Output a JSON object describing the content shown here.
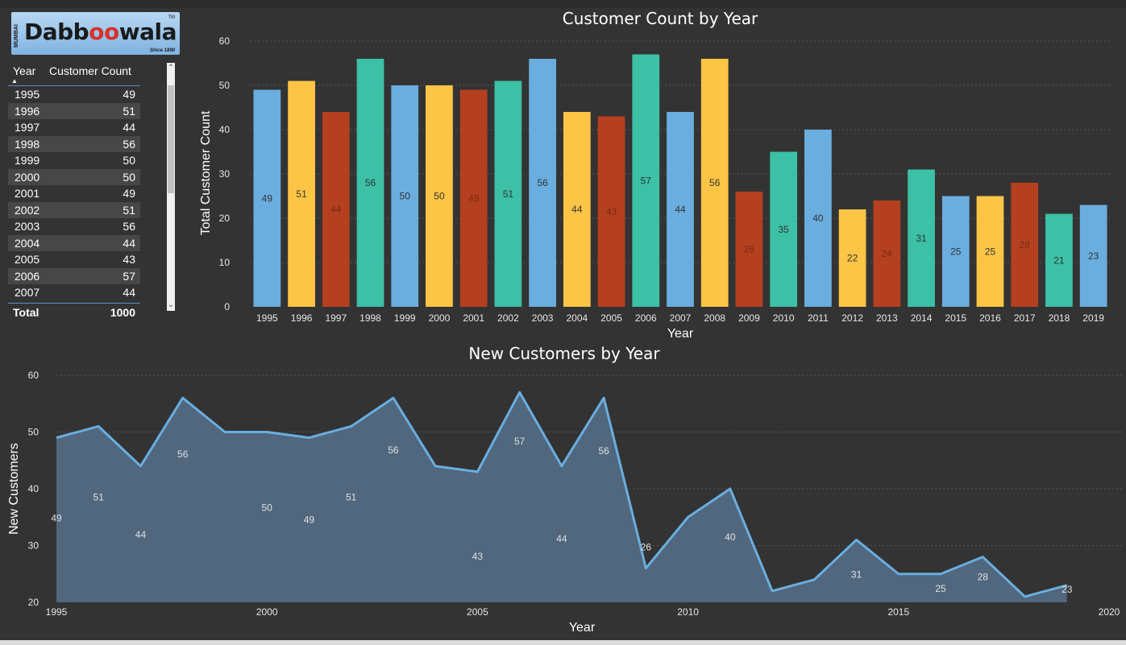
{
  "logo": {
    "text_a": "Dabb",
    "text_b": "o",
    "text_c": "wala",
    "side": "MUMBAI",
    "since": "Since 1890",
    "tm": "TM"
  },
  "table": {
    "col_year": "Year",
    "col_count": "Customer Count",
    "rows": [
      {
        "year": "1995",
        "count": "49"
      },
      {
        "year": "1996",
        "count": "51"
      },
      {
        "year": "1997",
        "count": "44"
      },
      {
        "year": "1998",
        "count": "56"
      },
      {
        "year": "1999",
        "count": "50"
      },
      {
        "year": "2000",
        "count": "50"
      },
      {
        "year": "2001",
        "count": "49"
      },
      {
        "year": "2002",
        "count": "51"
      },
      {
        "year": "2003",
        "count": "56"
      },
      {
        "year": "2004",
        "count": "44"
      },
      {
        "year": "2005",
        "count": "43"
      },
      {
        "year": "2006",
        "count": "57"
      },
      {
        "year": "2007",
        "count": "44"
      }
    ],
    "total_label": "Total",
    "total_value": "1000"
  },
  "colors": {
    "blue": "#6aaee0",
    "yellow": "#fdc546",
    "red": "#b5401f",
    "teal": "#3cc0a6",
    "area_line": "#6aaee0",
    "area_fill": "#50677e"
  },
  "chart_data": [
    {
      "type": "bar",
      "title": "Customer Count by Year",
      "xlabel": "Year",
      "ylabel": "Total Customer Count",
      "ylim": [
        0,
        60
      ],
      "yticks": [
        0,
        10,
        20,
        30,
        40,
        50,
        60
      ],
      "grid": true,
      "categories": [
        "1995",
        "1996",
        "1997",
        "1998",
        "1999",
        "2000",
        "2001",
        "2002",
        "2003",
        "2004",
        "2005",
        "2006",
        "2007",
        "2008",
        "2009",
        "2010",
        "2011",
        "2012",
        "2013",
        "2014",
        "2015",
        "2016",
        "2017",
        "2018",
        "2019"
      ],
      "values": [
        49,
        51,
        44,
        56,
        50,
        50,
        49,
        51,
        56,
        44,
        43,
        57,
        44,
        56,
        26,
        35,
        40,
        22,
        24,
        31,
        25,
        25,
        28,
        21,
        23
      ],
      "bar_colors": [
        "blue",
        "yellow",
        "red",
        "teal",
        "blue",
        "yellow",
        "red",
        "teal",
        "blue",
        "yellow",
        "red",
        "teal",
        "blue",
        "yellow",
        "red",
        "teal",
        "blue",
        "yellow",
        "red",
        "teal",
        "blue",
        "yellow",
        "red",
        "teal",
        "blue"
      ]
    },
    {
      "type": "area",
      "title": "New Customers by Year",
      "xlabel": "Year",
      "ylabel": "New Customers",
      "ylim": [
        20,
        60
      ],
      "yticks": [
        20,
        30,
        40,
        50,
        60
      ],
      "xlim": [
        1995,
        2020
      ],
      "xticks": [
        1995,
        2000,
        2005,
        2010,
        2015,
        2020
      ],
      "grid": true,
      "x": [
        1995,
        1996,
        1997,
        1998,
        1999,
        2000,
        2001,
        2002,
        2003,
        2004,
        2005,
        2006,
        2007,
        2008,
        2009,
        2010,
        2011,
        2012,
        2013,
        2014,
        2015,
        2016,
        2017,
        2018,
        2019
      ],
      "values": [
        49,
        51,
        44,
        56,
        50,
        50,
        49,
        51,
        56,
        44,
        43,
        57,
        44,
        56,
        26,
        35,
        40,
        22,
        24,
        31,
        25,
        25,
        28,
        21,
        23
      ],
      "labeled_years": [
        1995,
        1996,
        1997,
        1998,
        2000,
        2001,
        2002,
        2003,
        2005,
        2006,
        2007,
        2008,
        2009,
        2011,
        2014,
        2016,
        2017,
        2019
      ]
    }
  ]
}
